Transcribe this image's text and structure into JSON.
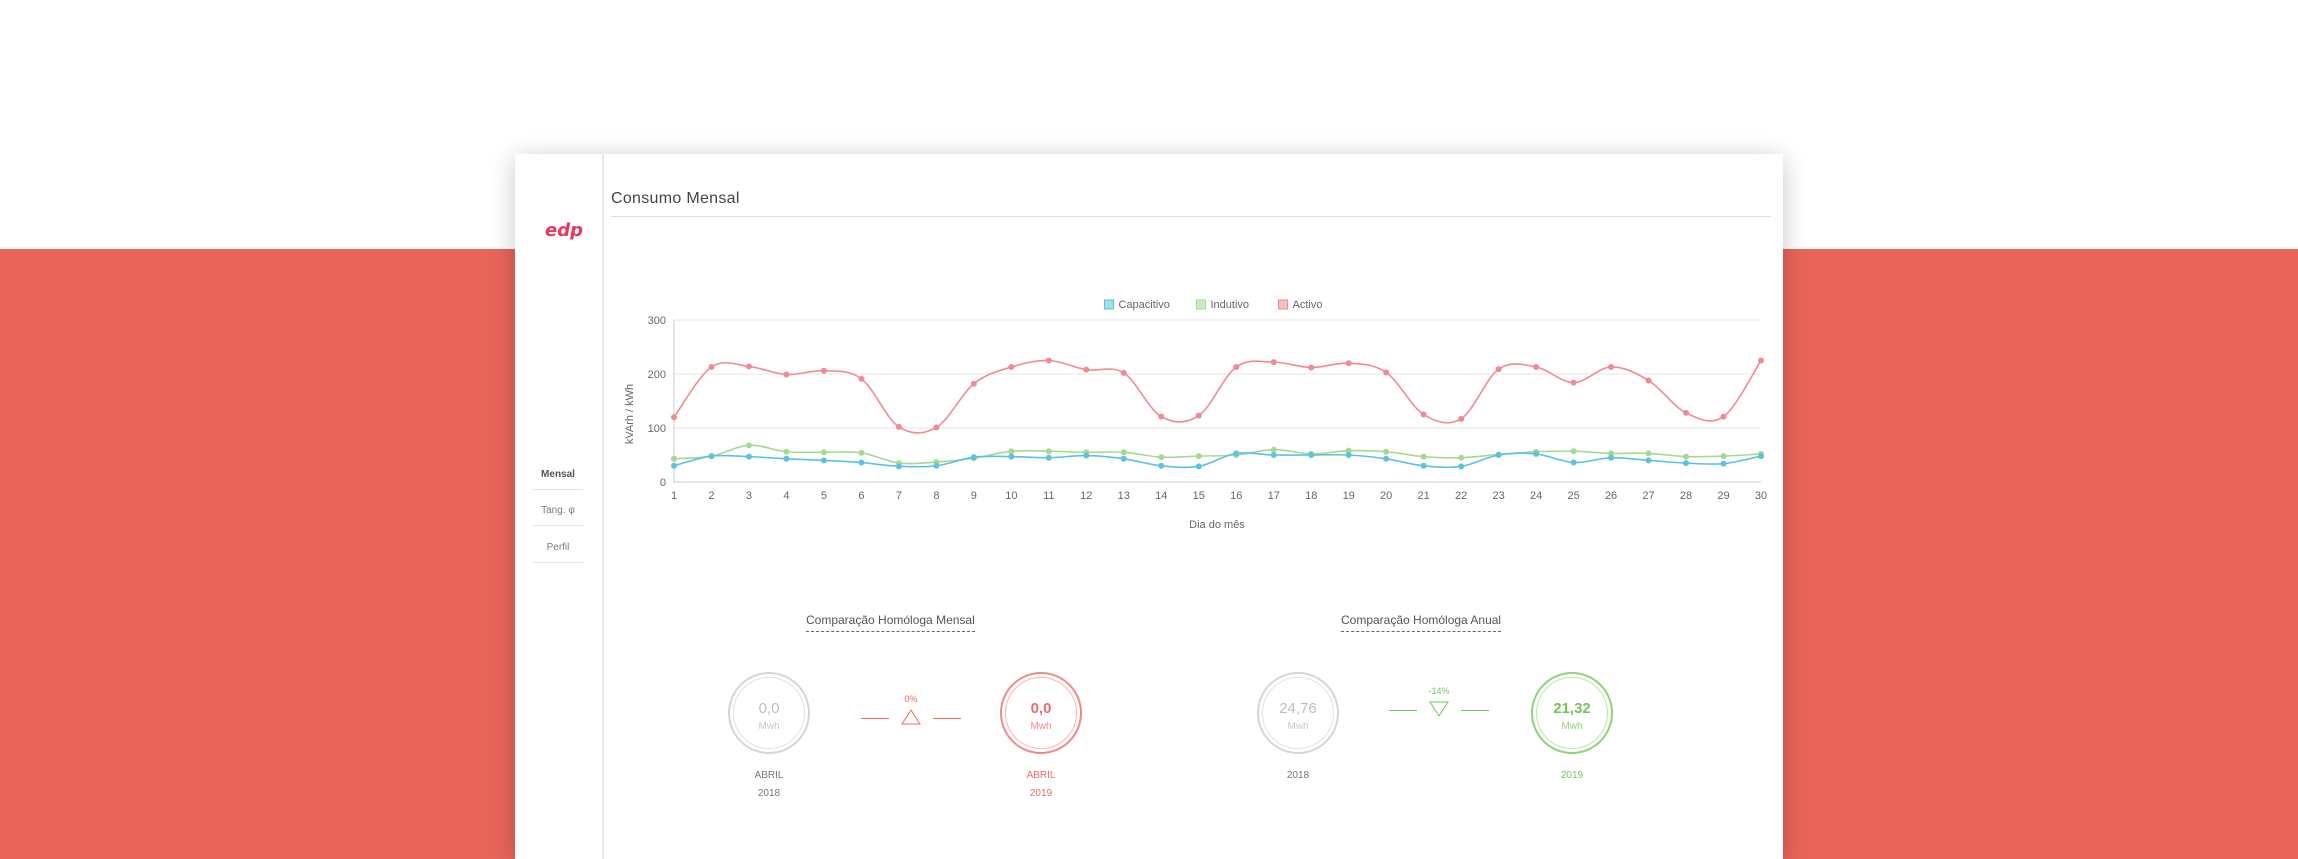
{
  "app": {
    "logo_text": "edp"
  },
  "sidebar": {
    "items": [
      {
        "label": "Mensal",
        "active": true
      },
      {
        "label": "Tang. φ",
        "active": false
      },
      {
        "label": "Perfil",
        "active": false
      }
    ]
  },
  "page": {
    "title": "Consumo Mensal"
  },
  "colors": {
    "accent_red": "#e9655a",
    "capacitivo": "#5bc2df",
    "indutivo": "#a6d98f",
    "activo": "#f28a92"
  },
  "chart_data": {
    "type": "line",
    "title": "",
    "xlabel": "Dia do mês",
    "ylabel": "kVArh / kWh",
    "ylim": [
      0,
      300
    ],
    "yticks": [
      0,
      100,
      200,
      300
    ],
    "legend_position": "top-center",
    "grid": true,
    "x": [
      1,
      2,
      3,
      4,
      5,
      6,
      7,
      8,
      9,
      10,
      11,
      12,
      13,
      14,
      15,
      16,
      17,
      18,
      19,
      20,
      21,
      22,
      23,
      24,
      25,
      26,
      27,
      28,
      29,
      30
    ],
    "series": [
      {
        "name": "Capacitivo",
        "color": "#5bc2df",
        "values": [
          30,
          48,
          47,
          43,
          40,
          36,
          29,
          30,
          46,
          47,
          45,
          49,
          43,
          30,
          29,
          53,
          50,
          50,
          50,
          43,
          30,
          29,
          50,
          52,
          36,
          45,
          40,
          35,
          34,
          48
        ]
      },
      {
        "name": "Indutivo",
        "color": "#a6d98f",
        "values": [
          43,
          48,
          68,
          56,
          55,
          54,
          35,
          37,
          44,
          57,
          57,
          55,
          55,
          46,
          48,
          50,
          60,
          52,
          58,
          56,
          47,
          45,
          51,
          56,
          57,
          53,
          53,
          47,
          48,
          52
        ]
      },
      {
        "name": "Activo",
        "color": "#f28a92",
        "values": [
          120,
          213,
          214,
          199,
          206,
          191,
          102,
          101,
          182,
          213,
          225,
          208,
          202,
          121,
          123,
          213,
          222,
          212,
          220,
          203,
          125,
          117,
          209,
          213,
          184,
          213,
          188,
          128,
          121,
          225
        ]
      }
    ]
  },
  "comparisons": [
    {
      "title": "Comparação Homóloga Mensal",
      "left": {
        "value": "0,0",
        "unit": "Mwh",
        "month": "ABRIL",
        "year": "2018"
      },
      "delta": "0%",
      "direction": "up",
      "right": {
        "value": "0,0",
        "unit": "Mwh",
        "month": "ABRIL",
        "year": "2019"
      },
      "right_style": "red"
    },
    {
      "title": "Comparação Homóloga Anual",
      "left": {
        "value": "24,76",
        "unit": "Mwh",
        "year": "2018"
      },
      "delta": "-14%",
      "direction": "down",
      "right": {
        "value": "21,32",
        "unit": "Mwh",
        "year": "2019"
      },
      "right_style": "green"
    }
  ]
}
